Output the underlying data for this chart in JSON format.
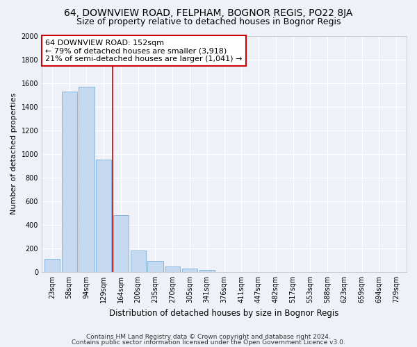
{
  "title1": "64, DOWNVIEW ROAD, FELPHAM, BOGNOR REGIS, PO22 8JA",
  "title2": "Size of property relative to detached houses in Bognor Regis",
  "xlabel": "Distribution of detached houses by size in Bognor Regis",
  "ylabel": "Number of detached properties",
  "categories": [
    "23sqm",
    "58sqm",
    "94sqm",
    "129sqm",
    "164sqm",
    "200sqm",
    "235sqm",
    "270sqm",
    "305sqm",
    "341sqm",
    "376sqm",
    "411sqm",
    "447sqm",
    "482sqm",
    "517sqm",
    "553sqm",
    "588sqm",
    "623sqm",
    "659sqm",
    "694sqm",
    "729sqm"
  ],
  "values": [
    110,
    1530,
    1570,
    950,
    480,
    180,
    95,
    45,
    30,
    20,
    0,
    0,
    0,
    0,
    0,
    0,
    0,
    0,
    0,
    0,
    0
  ],
  "bar_color": "#c5d9f0",
  "bar_edge_color": "#7aadd4",
  "red_line_x": 3.5,
  "annotation_line1": "64 DOWNVIEW ROAD: 152sqm",
  "annotation_line2": "← 79% of detached houses are smaller (3,918)",
  "annotation_line3": "21% of semi-detached houses are larger (1,041) →",
  "annotation_box_color": "#ffffff",
  "annotation_box_edge": "#cc0000",
  "footer1": "Contains HM Land Registry data © Crown copyright and database right 2024.",
  "footer2": "Contains public sector information licensed under the Open Government Licence v3.0.",
  "ylim": [
    0,
    2000
  ],
  "yticks": [
    0,
    200,
    400,
    600,
    800,
    1000,
    1200,
    1400,
    1600,
    1800,
    2000
  ],
  "background_color": "#eef2f8",
  "grid_color": "#ffffff",
  "title1_fontsize": 10,
  "title2_fontsize": 9,
  "xlabel_fontsize": 8.5,
  "ylabel_fontsize": 8,
  "tick_fontsize": 7,
  "annotation_fontsize": 8,
  "footer_fontsize": 6.5
}
